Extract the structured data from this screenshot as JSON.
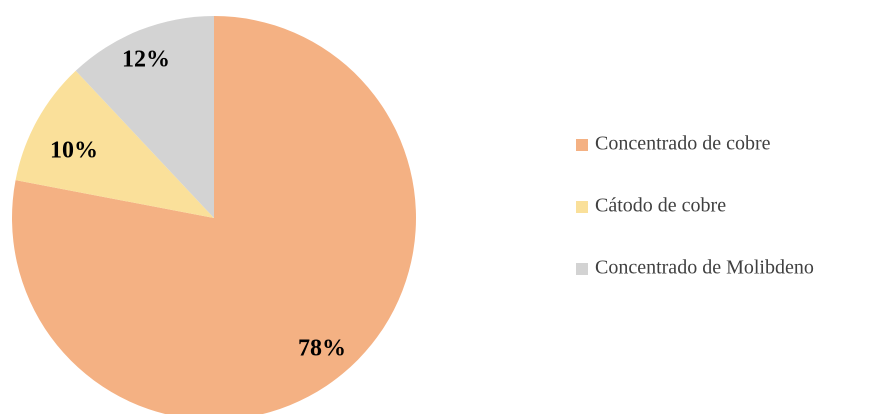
{
  "chart_data": {
    "type": "pie",
    "title": "",
    "start_angle_deg": 0,
    "direction": "clockwise",
    "legend_position": "right",
    "slices": [
      {
        "label": "Concentrado de cobre",
        "value": 78,
        "display": "78%",
        "color": "#F4B183"
      },
      {
        "label": "Cátodo de cobre",
        "value": 10,
        "display": "10%",
        "color": "#FAE09A"
      },
      {
        "label": "Concentrado de Molibdeno",
        "value": 12,
        "display": "12%",
        "color": "#D3D3D3"
      }
    ]
  }
}
